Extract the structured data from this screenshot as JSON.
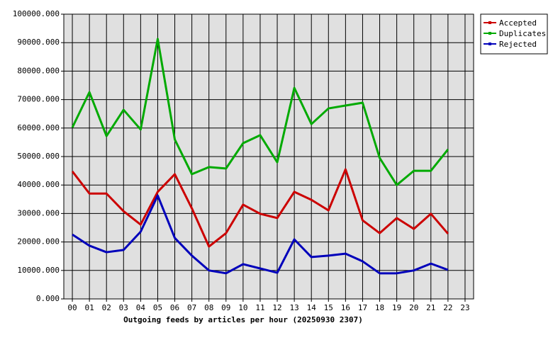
{
  "chart_data": {
    "type": "line",
    "title": "Outgoing feeds by articles per hour (20250930 2307)",
    "categories": [
      "00",
      "01",
      "02",
      "03",
      "04",
      "05",
      "06",
      "07",
      "08",
      "09",
      "10",
      "11",
      "12",
      "13",
      "14",
      "15",
      "16",
      "17",
      "18",
      "19",
      "20",
      "21",
      "22",
      "23"
    ],
    "series": [
      {
        "name": "Accepted",
        "color": "#cc0000",
        "values": [
          44800,
          37000,
          37000,
          30800,
          26100,
          37600,
          43800,
          31800,
          18400,
          23100,
          33100,
          29900,
          28400,
          37600,
          34800,
          31100,
          45500,
          27600,
          23100,
          28400,
          24600,
          29900,
          22900,
          null
        ]
      },
      {
        "name": "Duplicates",
        "color": "#00aa00",
        "values": [
          60200,
          72600,
          57200,
          66400,
          59500,
          91300,
          56000,
          43800,
          46300,
          45800,
          54700,
          57500,
          48000,
          74100,
          61400,
          66900,
          67900,
          68900,
          49500,
          40000,
          45000,
          45000,
          52500,
          null
        ]
      },
      {
        "name": "Rejected",
        "color": "#0000bb",
        "values": [
          22600,
          18700,
          16400,
          17200,
          23600,
          36300,
          21400,
          15200,
          10000,
          9000,
          12200,
          10700,
          9200,
          20900,
          14700,
          15200,
          15900,
          13200,
          9000,
          9000,
          10000,
          12400,
          10200,
          null
        ]
      }
    ],
    "ylim": [
      0,
      100000
    ],
    "yticks": [
      {
        "value": 0,
        "label": "0.000"
      },
      {
        "value": 10000,
        "label": "10000.000"
      },
      {
        "value": 20000,
        "label": "20000.000"
      },
      {
        "value": 30000,
        "label": "30000.000"
      },
      {
        "value": 40000,
        "label": "40000.000"
      },
      {
        "value": 50000,
        "label": "50000.000"
      },
      {
        "value": 60000,
        "label": "60000.000"
      },
      {
        "value": 70000,
        "label": "70000.000"
      },
      {
        "value": 80000,
        "label": "80000.000"
      },
      {
        "value": 90000,
        "label": "90000.000"
      },
      {
        "value": 100000,
        "label": "100000.000"
      }
    ],
    "grid": true,
    "legend_position": "top-right"
  }
}
